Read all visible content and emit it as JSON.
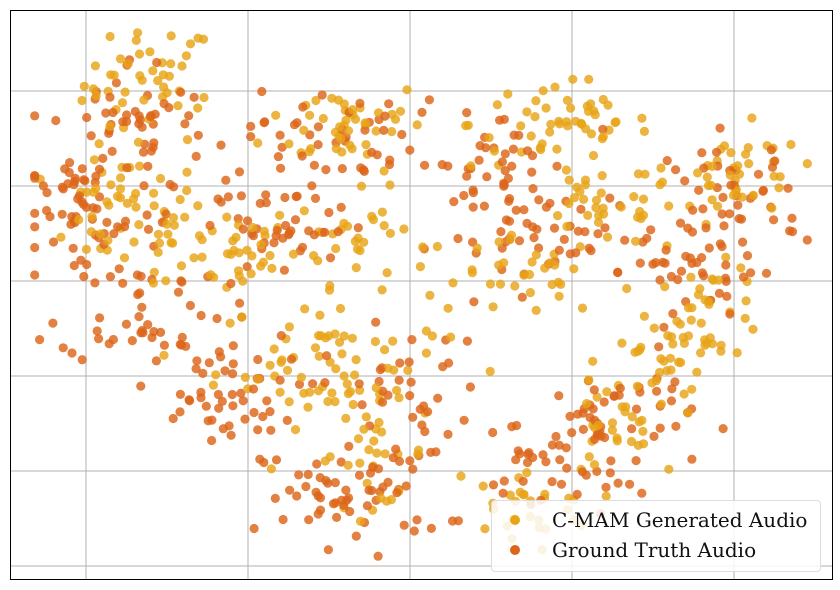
{
  "chart_data": {
    "type": "scatter",
    "title": "",
    "xlabel": "",
    "ylabel": "",
    "xlim": [
      0,
      100
    ],
    "ylim": [
      0,
      100
    ],
    "grid": true,
    "tick_labels_shown": false,
    "legend_placement": "bottom-right",
    "series": [
      {
        "name": "C-MAM Generated Audio",
        "color": "#E8A317",
        "clusters": [
          {
            "cx": 17,
            "cy": 87,
            "sx": 4.0,
            "sy": 5.5,
            "n": 45
          },
          {
            "cx": 14,
            "cy": 64,
            "sx": 5.0,
            "sy": 5.0,
            "n": 50
          },
          {
            "cx": 26,
            "cy": 58,
            "sx": 4.5,
            "sy": 4.0,
            "n": 40
          },
          {
            "cx": 41,
            "cy": 80,
            "sx": 5.0,
            "sy": 4.0,
            "n": 45
          },
          {
            "cx": 43,
            "cy": 60,
            "sx": 4.0,
            "sy": 4.0,
            "n": 30
          },
          {
            "cx": 39,
            "cy": 38,
            "sx": 7.0,
            "sy": 5.5,
            "n": 70
          },
          {
            "cx": 44,
            "cy": 22,
            "sx": 3.5,
            "sy": 4.5,
            "n": 30
          },
          {
            "cx": 67,
            "cy": 80,
            "sx": 5.5,
            "sy": 4.0,
            "n": 50
          },
          {
            "cx": 72,
            "cy": 66,
            "sx": 4.5,
            "sy": 4.0,
            "n": 35
          },
          {
            "cx": 63,
            "cy": 53,
            "sx": 4.5,
            "sy": 3.5,
            "n": 30
          },
          {
            "cx": 89,
            "cy": 70,
            "sx": 4.0,
            "sy": 4.5,
            "n": 40
          },
          {
            "cx": 85,
            "cy": 47,
            "sx": 3.5,
            "sy": 4.0,
            "n": 40
          },
          {
            "cx": 79,
            "cy": 38,
            "sx": 3.5,
            "sy": 3.0,
            "n": 25
          },
          {
            "cx": 73,
            "cy": 26,
            "sx": 3.0,
            "sy": 4.0,
            "n": 25
          },
          {
            "cx": 62,
            "cy": 13,
            "sx": 4.5,
            "sy": 3.5,
            "n": 30
          }
        ]
      },
      {
        "name": "Ground Truth Audio",
        "color": "#DC6518",
        "clusters": [
          {
            "cx": 9,
            "cy": 64,
            "sx": 4.5,
            "sy": 6.0,
            "n": 55
          },
          {
            "cx": 15,
            "cy": 80,
            "sx": 5.0,
            "sy": 6.0,
            "n": 50
          },
          {
            "cx": 16,
            "cy": 48,
            "sx": 5.0,
            "sy": 5.0,
            "n": 45
          },
          {
            "cx": 25,
            "cy": 32,
            "sx": 5.0,
            "sy": 6.0,
            "n": 55
          },
          {
            "cx": 39,
            "cy": 78,
            "sx": 5.0,
            "sy": 4.0,
            "n": 40
          },
          {
            "cx": 32,
            "cy": 62,
            "sx": 6.0,
            "sy": 5.0,
            "n": 50
          },
          {
            "cx": 42,
            "cy": 14,
            "sx": 5.5,
            "sy": 4.0,
            "n": 55
          },
          {
            "cx": 48,
            "cy": 32,
            "sx": 5.0,
            "sy": 6.0,
            "n": 40
          },
          {
            "cx": 59,
            "cy": 73,
            "sx": 5.0,
            "sy": 5.0,
            "n": 40
          },
          {
            "cx": 66,
            "cy": 60,
            "sx": 7.0,
            "sy": 4.0,
            "n": 50
          },
          {
            "cx": 88,
            "cy": 66,
            "sx": 4.0,
            "sy": 6.0,
            "n": 50
          },
          {
            "cx": 84,
            "cy": 54,
            "sx": 4.0,
            "sy": 4.5,
            "n": 30
          },
          {
            "cx": 73,
            "cy": 28,
            "sx": 5.0,
            "sy": 5.0,
            "n": 50
          },
          {
            "cx": 66,
            "cy": 18,
            "sx": 4.0,
            "sy": 4.0,
            "n": 30
          }
        ]
      }
    ]
  }
}
